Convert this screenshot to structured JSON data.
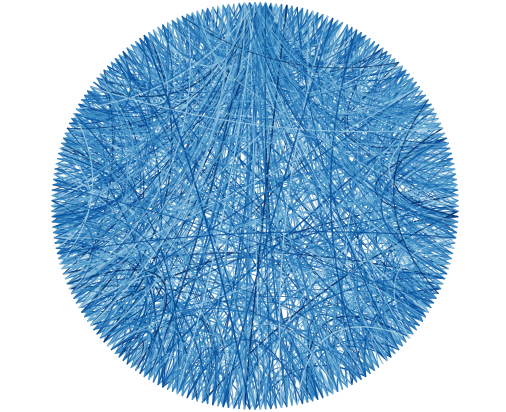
{
  "diagram": {
    "type": "circular-chord-bundle",
    "node_count": 240,
    "edge_count": 1400,
    "hub_node_indices": [
      0,
      1,
      2,
      238,
      239
    ],
    "palette": {
      "darkest": "#08306b",
      "dark": "#08519c",
      "mid": "#2171b5",
      "medium": "#4292c6",
      "light": "#6baed6",
      "lightest": "#9ecae1"
    },
    "background": "#ffffff"
  }
}
